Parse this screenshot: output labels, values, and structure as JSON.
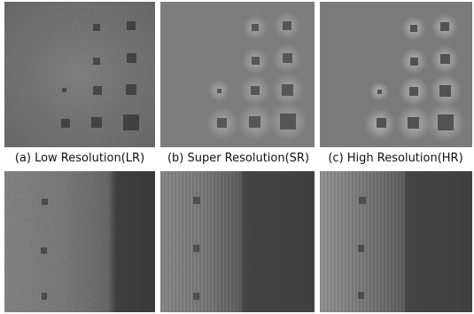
{
  "figure": {
    "captions": {
      "lr": "(a) Low Resolution(LR)",
      "sr": "(b) Super Resolution(SR)",
      "hr": "(c) High Resolution(HR)"
    }
  }
}
